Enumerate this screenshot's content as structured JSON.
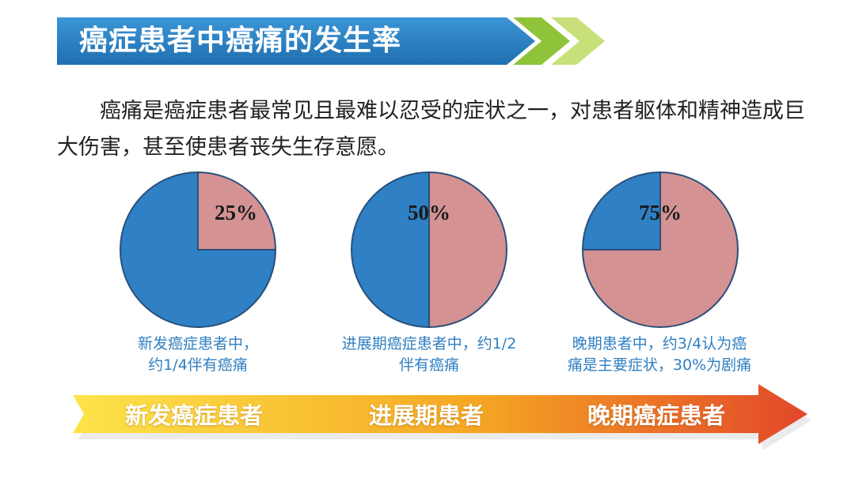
{
  "header": {
    "title": "癌症患者中癌痛的发生率",
    "banner_color": "#2c82c4",
    "chevron_color": "#9fcf3c"
  },
  "intro": {
    "text": "癌痛是癌症患者最常见且最难以忍受的症状之一，对患者躯体和精神造成巨大伤害，甚至使患者丧失生存意愿。"
  },
  "chart_data": [
    {
      "type": "pie",
      "slices": [
        {
          "label": "25%",
          "value": 25,
          "color": "#d49293"
        },
        {
          "value": 75,
          "color": "#2f80c4"
        }
      ],
      "caption": [
        "新发癌症患者中，",
        "约1/4伴有癌痛"
      ]
    },
    {
      "type": "pie",
      "slices": [
        {
          "label": "50%",
          "value": 50,
          "color": "#d49293"
        },
        {
          "value": 50,
          "color": "#2f80c4"
        }
      ],
      "caption": [
        "进展期癌症患者中，约1/2",
        "伴有癌痛"
      ]
    },
    {
      "type": "pie",
      "slices": [
        {
          "label": "75%",
          "value": 75,
          "color": "#d49293"
        },
        {
          "value": 25,
          "color": "#2f80c4"
        }
      ],
      "caption": [
        "晚期患者中，约3/4认为癌",
        "痛是主要症状，30%为剧痛"
      ]
    }
  ],
  "stages": {
    "items": [
      "新发癌症患者",
      "进展期患者",
      "晚期癌症患者"
    ],
    "gradient": [
      "#fde44a",
      "#f5a623",
      "#e2472a"
    ]
  }
}
